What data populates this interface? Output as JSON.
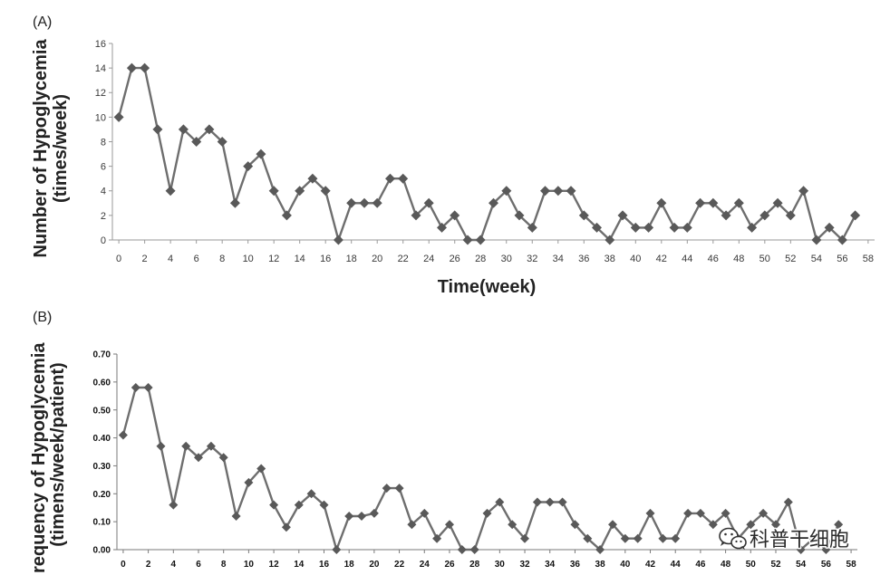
{
  "chart_data": [
    {
      "type": "line",
      "panel_label": "(A)",
      "xlabel": "Time(week)",
      "ylabel": [
        "Number of Hypoglycemia",
        "(times/week)"
      ],
      "xlim": [
        0,
        58
      ],
      "ylim": [
        0,
        16
      ],
      "grid": false,
      "x_tick_labels": [
        "0",
        "2",
        "4",
        "6",
        "8",
        "10",
        "12",
        "14",
        "16",
        "18",
        "20",
        "22",
        "24",
        "26",
        "28",
        "30",
        "32",
        "34",
        "36",
        "38",
        "40",
        "42",
        "44",
        "46",
        "48",
        "50",
        "52",
        "54",
        "56",
        "58"
      ],
      "y_tick_labels": [
        "0",
        "2",
        "4",
        "6",
        "8",
        "10",
        "12",
        "14",
        "16"
      ],
      "x": [
        0,
        1,
        2,
        3,
        4,
        5,
        6,
        7,
        8,
        9,
        10,
        11,
        12,
        13,
        14,
        15,
        16,
        17,
        18,
        19,
        20,
        21,
        22,
        23,
        24,
        25,
        26,
        27,
        28,
        29,
        30,
        31,
        32,
        33,
        34,
        35,
        36,
        37,
        38,
        39,
        40,
        41,
        42,
        43,
        44,
        45,
        46,
        47,
        48,
        49,
        50,
        51,
        52,
        53,
        54,
        55,
        56,
        57
      ],
      "y": [
        10,
        14,
        14,
        9,
        4,
        9,
        8,
        9,
        8,
        3,
        6,
        7,
        4,
        2,
        4,
        5,
        4,
        0,
        3,
        3,
        3,
        5,
        5,
        2,
        3,
        1,
        2,
        0,
        0,
        3,
        4,
        2,
        1,
        4,
        4,
        4,
        2,
        1,
        0,
        2,
        1,
        1,
        3,
        1,
        1,
        3,
        3,
        2,
        3,
        1,
        2,
        3,
        2,
        4,
        0,
        1,
        0,
        2
      ],
      "colors": {
        "line": "#6e6e6e",
        "marker": "#595959",
        "axis": "#9a9a9a",
        "tick_text": "#3a3a3a"
      }
    },
    {
      "type": "line",
      "panel_label": "(B)",
      "ylabel": [
        "requency of Hypoglycemia",
        "(timens/week/patient)"
      ],
      "xlim": [
        0,
        58
      ],
      "ylim": [
        0,
        0.7
      ],
      "grid": false,
      "x_tick_labels": [
        "0",
        "2",
        "4",
        "6",
        "8",
        "10",
        "12",
        "14",
        "16",
        "18",
        "20",
        "22",
        "24",
        "26",
        "28",
        "30",
        "32",
        "34",
        "36",
        "38",
        "40",
        "42",
        "44",
        "46",
        "48",
        "50",
        "52",
        "54",
        "56",
        "58"
      ],
      "y_tick_labels": [
        "0.00",
        "0.10",
        "0.20",
        "0.30",
        "0.40",
        "0.50",
        "0.60",
        "0.70"
      ],
      "x": [
        0,
        1,
        2,
        3,
        4,
        5,
        6,
        7,
        8,
        9,
        10,
        11,
        12,
        13,
        14,
        15,
        16,
        17,
        18,
        19,
        20,
        21,
        22,
        23,
        24,
        25,
        26,
        27,
        28,
        29,
        30,
        31,
        32,
        33,
        34,
        35,
        36,
        37,
        38,
        39,
        40,
        41,
        42,
        43,
        44,
        45,
        46,
        47,
        48,
        49,
        50,
        51,
        52,
        53,
        54,
        55,
        56,
        57
      ],
      "y": [
        0.41,
        0.58,
        0.58,
        0.37,
        0.16,
        0.37,
        0.33,
        0.37,
        0.33,
        0.12,
        0.24,
        0.29,
        0.16,
        0.08,
        0.16,
        0.2,
        0.16,
        0.0,
        0.12,
        0.12,
        0.13,
        0.22,
        0.22,
        0.09,
        0.13,
        0.04,
        0.09,
        0.0,
        0.0,
        0.13,
        0.17,
        0.09,
        0.04,
        0.17,
        0.17,
        0.17,
        0.09,
        0.04,
        0.0,
        0.09,
        0.04,
        0.04,
        0.13,
        0.04,
        0.04,
        0.13,
        0.13,
        0.09,
        0.13,
        0.04,
        0.09,
        0.13,
        0.09,
        0.17,
        0.0,
        0.04,
        0.0,
        0.09
      ],
      "colors": {
        "line": "#6e6e6e",
        "marker": "#595959",
        "axis": "#7a7a7a",
        "tick_text": "#111111"
      }
    }
  ],
  "watermark": {
    "text": "科普干细胞",
    "icon": "wechat-icon"
  }
}
